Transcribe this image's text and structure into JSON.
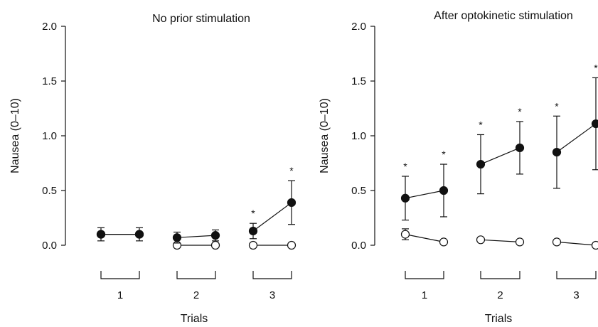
{
  "chart_data": [
    {
      "type": "scatter",
      "title": "No prior stimulation",
      "xlabel": "Trials",
      "ylabel": "Nausea (0–10)",
      "ylim": [
        0,
        2
      ],
      "yticks": [
        "0.0",
        "0.5",
        "1.0",
        "1.5",
        "2.0"
      ],
      "trials": [
        "1",
        "2",
        "3"
      ],
      "series": [
        {
          "marker": "filled",
          "values": [
            [
              0.1,
              0.1
            ],
            [
              0.07,
              0.09
            ],
            [
              0.13,
              0.39
            ]
          ],
          "err": [
            [
              0.06,
              0.06
            ],
            [
              0.05,
              0.05
            ],
            [
              0.07,
              0.2
            ]
          ],
          "significant": [
            [
              false,
              false
            ],
            [
              false,
              false
            ],
            [
              true,
              true
            ]
          ]
        },
        {
          "marker": "open",
          "values": [
            [
              0.1,
              0.1
            ],
            [
              0.0,
              0.0
            ],
            [
              0.0,
              0.0
            ]
          ],
          "err": [
            [
              0,
              0
            ],
            [
              0,
              0
            ],
            [
              0,
              0
            ]
          ]
        }
      ],
      "annotation": "*",
      "grid": false
    },
    {
      "type": "scatter",
      "title": "After optokinetic stimulation",
      "xlabel": "Trials",
      "ylabel": "Nausea (0–10)",
      "ylim": [
        0,
        2
      ],
      "yticks": [
        "0.0",
        "0.5",
        "1.0",
        "1.5",
        "2.0"
      ],
      "trials": [
        "1",
        "2",
        "3"
      ],
      "series": [
        {
          "marker": "filled",
          "values": [
            [
              0.43,
              0.5
            ],
            [
              0.74,
              0.89
            ],
            [
              0.85,
              1.11
            ]
          ],
          "err": [
            [
              0.2,
              0.24
            ],
            [
              0.27,
              0.24
            ],
            [
              0.33,
              0.42
            ]
          ],
          "significant": [
            [
              true,
              true
            ],
            [
              true,
              true
            ],
            [
              true,
              true
            ]
          ]
        },
        {
          "marker": "open",
          "values": [
            [
              0.1,
              0.03
            ],
            [
              0.05,
              0.03
            ],
            [
              0.03,
              0.0
            ]
          ],
          "err": [
            [
              0.05,
              0
            ],
            [
              0,
              0
            ],
            [
              0,
              0
            ]
          ]
        }
      ],
      "annotation": "*",
      "grid": false
    }
  ]
}
